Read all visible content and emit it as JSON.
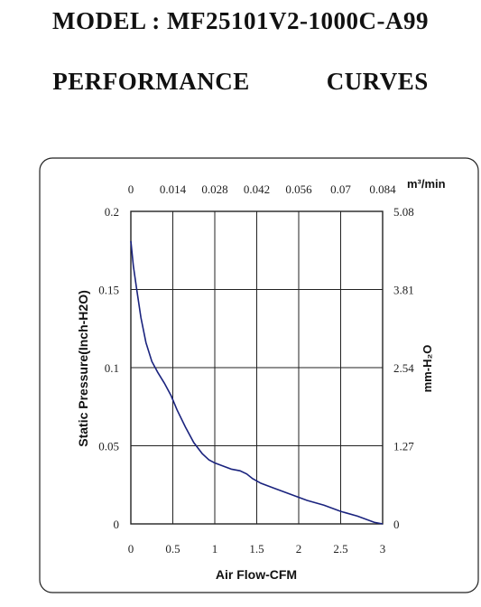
{
  "header": {
    "model_title": "MODEL : MF25101V2-1000C-A99",
    "perf_title": "PERFORMANCE    CURVES"
  },
  "chart_data": {
    "type": "line",
    "title": "",
    "xlabel": "Air Flow-CFM",
    "ylabel": "Static Pressure(Inch-H2O)",
    "x2label": "m³/min",
    "y2label": "mm-H₂O",
    "xlim": [
      0,
      3
    ],
    "ylim": [
      0,
      0.2
    ],
    "grid": true,
    "x_ticks": [
      "0",
      "0.5",
      "1",
      "1.5",
      "2",
      "2.5",
      "3"
    ],
    "y_ticks": [
      "0",
      "0.05",
      "0.1",
      "0.15",
      "0.2"
    ],
    "x2_ticks": [
      "0",
      "0.014",
      "0.028",
      "0.042",
      "0.056",
      "0.07",
      "0.084"
    ],
    "y2_ticks": [
      "0",
      "1.27",
      "2.54",
      "3.81",
      "5.08"
    ],
    "series": [
      {
        "color": "#1a237e",
        "x": [
          0,
          0.03,
          0.07,
          0.12,
          0.18,
          0.25,
          0.32,
          0.4,
          0.48,
          0.55,
          0.65,
          0.75,
          0.85,
          0.93,
          1.0,
          1.1,
          1.2,
          1.3,
          1.38,
          1.45,
          1.55,
          1.7,
          1.9,
          2.1,
          2.3,
          2.5,
          2.7,
          2.9,
          3.0
        ],
        "y": [
          0.181,
          0.165,
          0.15,
          0.132,
          0.116,
          0.104,
          0.097,
          0.09,
          0.082,
          0.073,
          0.062,
          0.052,
          0.045,
          0.041,
          0.039,
          0.037,
          0.035,
          0.034,
          0.032,
          0.029,
          0.026,
          0.023,
          0.019,
          0.015,
          0.012,
          0.008,
          0.005,
          0.001,
          0.0
        ]
      }
    ]
  }
}
